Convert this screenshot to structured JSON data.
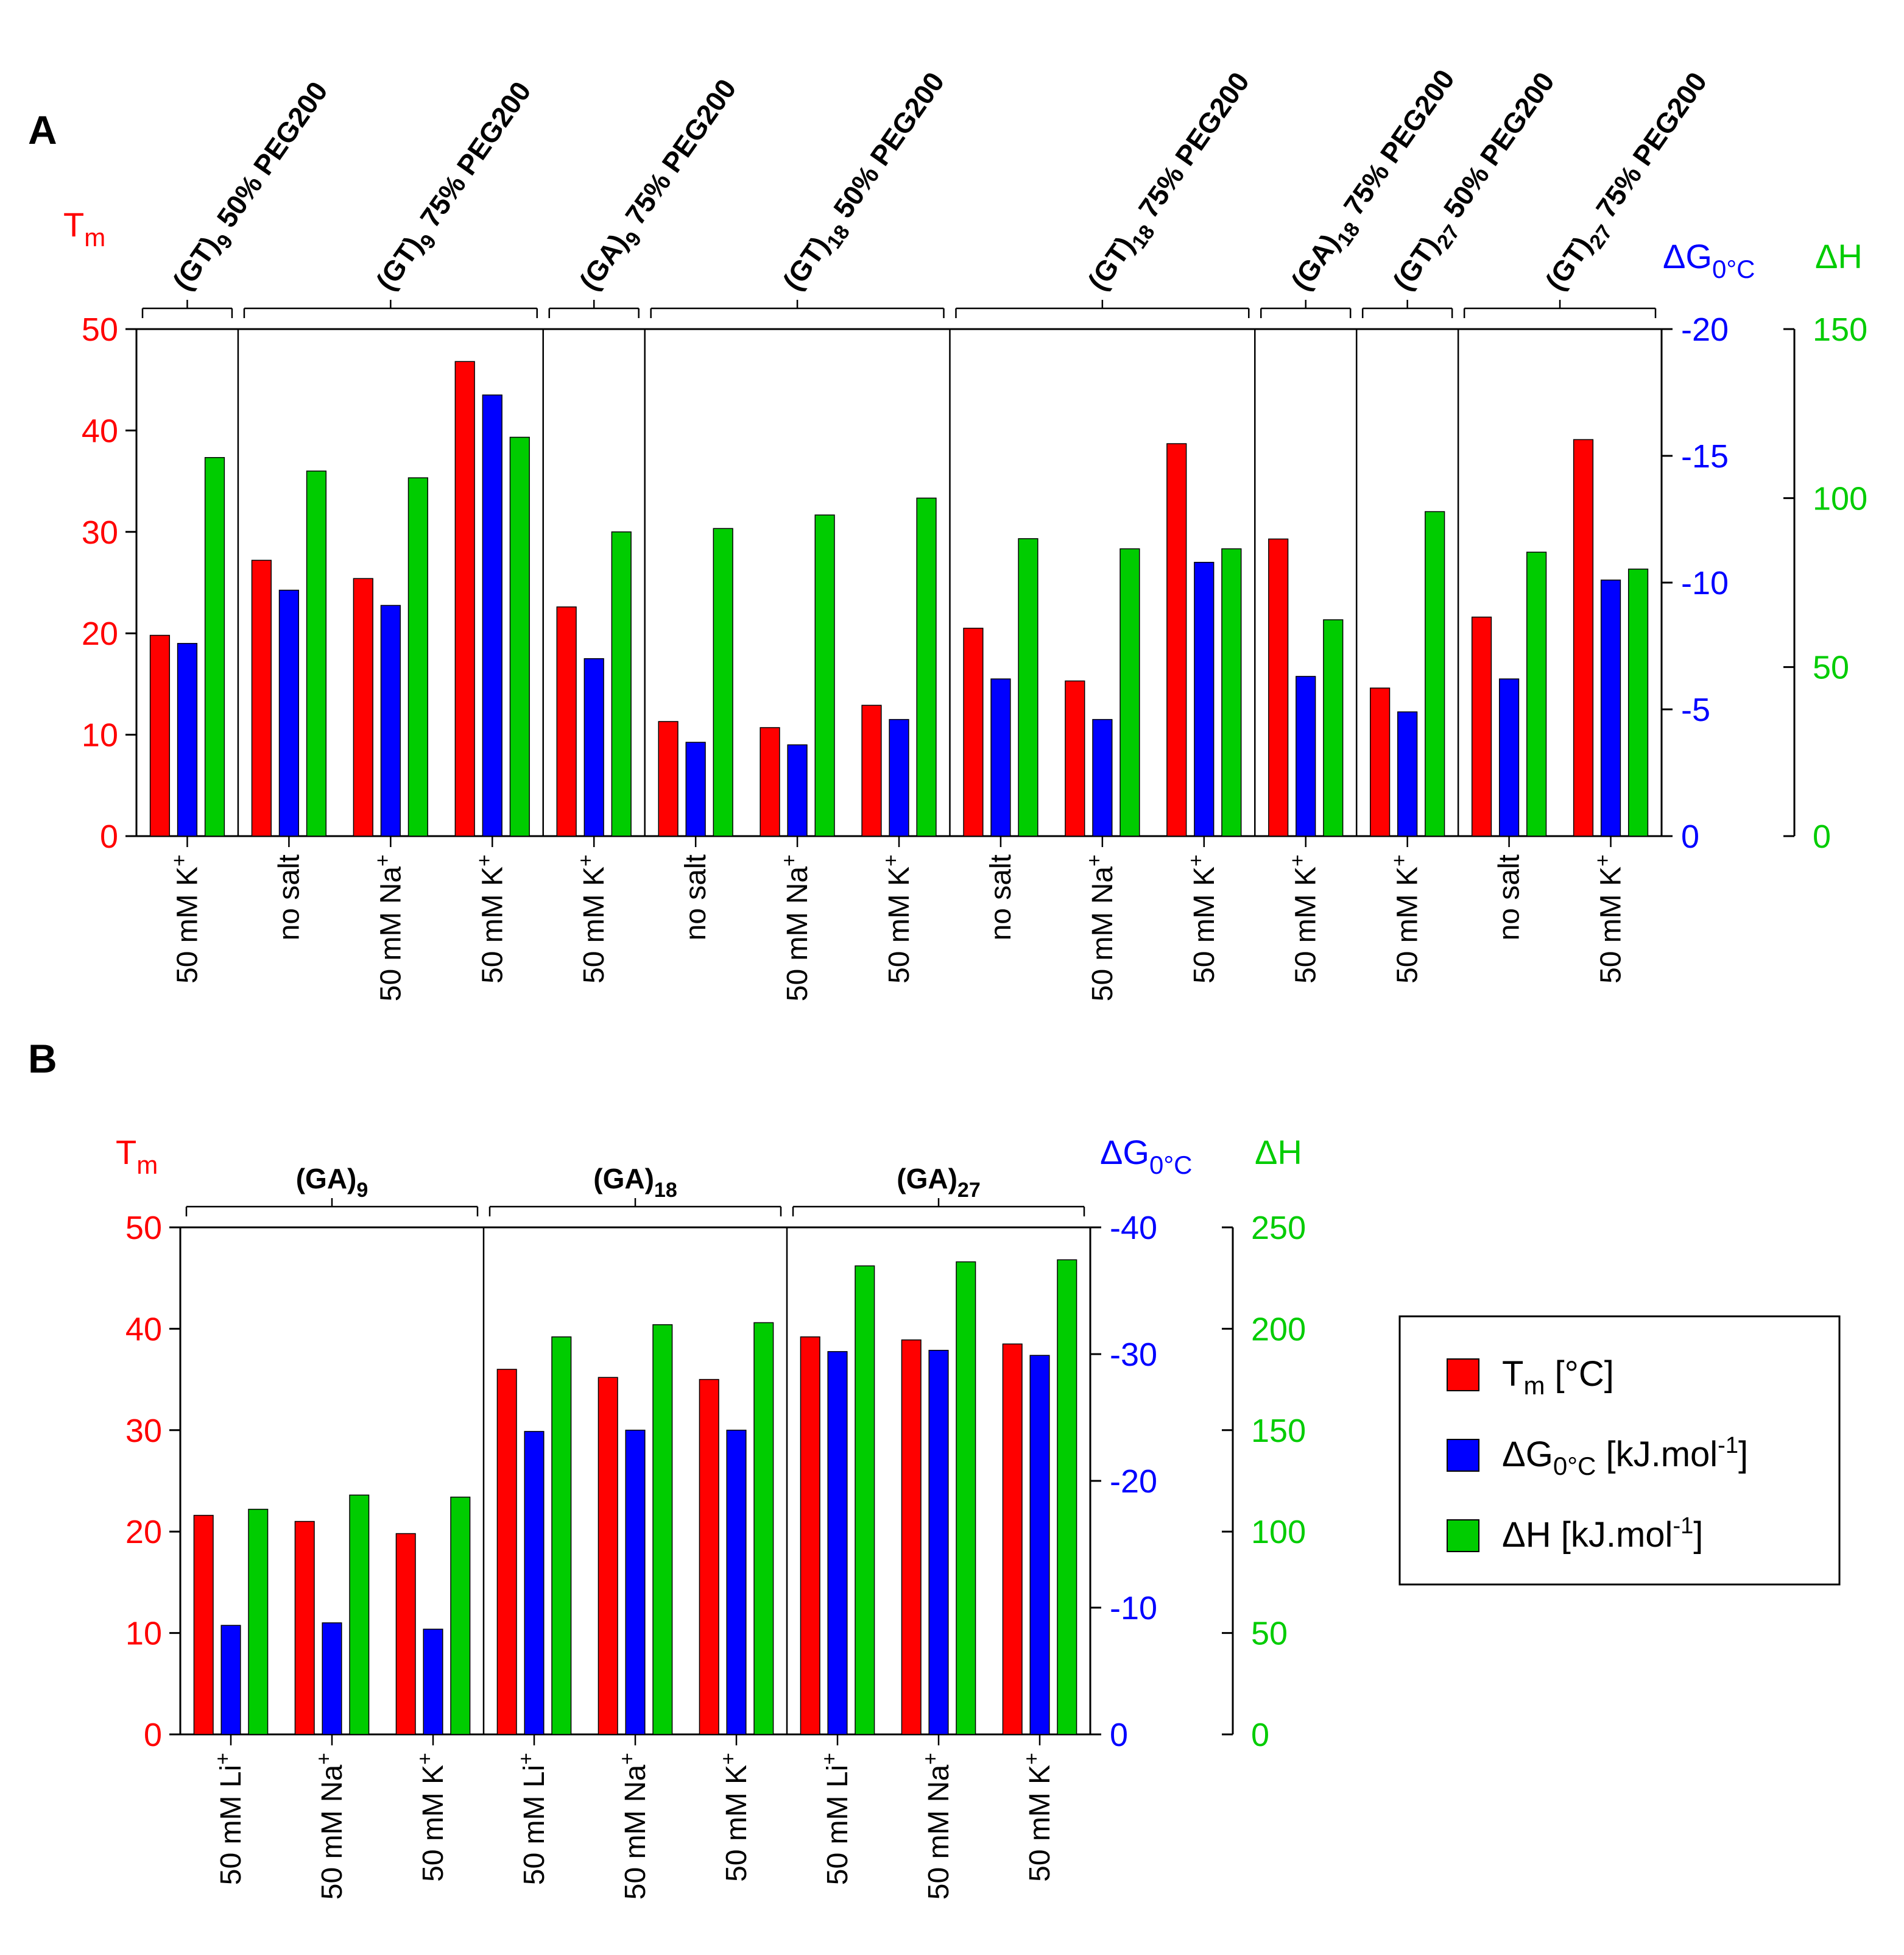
{
  "colors": {
    "tm": "#ff0000",
    "dg": "#0000ff",
    "dh": "#00cc00",
    "axis": "#000000"
  },
  "legend": {
    "items": [
      {
        "key": "tm",
        "main": "T",
        "sub": "m",
        "rest": " [°C]"
      },
      {
        "key": "dg",
        "main": "ΔG",
        "sub": "0°C",
        "rest": " [kJ.mol",
        "sup": "-1",
        "tail": "]"
      },
      {
        "key": "dh",
        "main": "ΔH",
        "sub": "",
        "rest": " [kJ.mol",
        "sup": "-1",
        "tail": "]"
      }
    ]
  },
  "chart_data": [
    {
      "panel": "A",
      "type": "bar",
      "axes": {
        "tm": {
          "main": "T",
          "sub": "m",
          "range": [
            0,
            50
          ],
          "ticks": [
            0,
            10,
            20,
            30,
            40,
            50
          ]
        },
        "dg": {
          "main": "ΔG",
          "sub": "0°C",
          "range": [
            0,
            -20
          ],
          "ticks": [
            0,
            -5,
            -10,
            -15,
            -20
          ]
        },
        "dh": {
          "main": "ΔH",
          "sub": "",
          "range": [
            0,
            150
          ],
          "ticks": [
            0,
            50,
            100,
            150
          ]
        }
      },
      "groups": [
        {
          "parts": [
            [
              "(GT)",
              ""
            ],
            [
              "9",
              "sub"
            ],
            [
              " 50% PEG200",
              ""
            ]
          ],
          "categories": [
            "50 mM K+"
          ]
        },
        {
          "parts": [
            [
              "(GT)",
              ""
            ],
            [
              "9",
              "sub"
            ],
            [
              " 75% PEG200",
              ""
            ]
          ],
          "categories": [
            "no salt",
            "50 mM Na+",
            "50 mM K+"
          ]
        },
        {
          "parts": [
            [
              "(GA)",
              ""
            ],
            [
              "9",
              "sub"
            ],
            [
              " 75% PEG200",
              ""
            ]
          ],
          "categories": [
            "50 mM K+"
          ]
        },
        {
          "parts": [
            [
              "(GT)",
              ""
            ],
            [
              "18",
              "sub"
            ],
            [
              " 50% PEG200",
              ""
            ]
          ],
          "categories": [
            "no salt",
            "50 mM Na+",
            "50 mM K+"
          ]
        },
        {
          "parts": [
            [
              "(GT)",
              ""
            ],
            [
              "18",
              "sub"
            ],
            [
              " 75% PEG200",
              ""
            ]
          ],
          "categories": [
            "no salt",
            "50 mM Na+",
            "50 mM K+"
          ]
        },
        {
          "parts": [
            [
              "(GA)",
              ""
            ],
            [
              "18",
              "sub"
            ],
            [
              " 75% PEG200",
              ""
            ]
          ],
          "categories": [
            "50 mM K+"
          ]
        },
        {
          "parts": [
            [
              "(GT)",
              ""
            ],
            [
              "27",
              "sub"
            ],
            [
              " 50% PEG200",
              ""
            ]
          ],
          "categories": [
            "50 mM K+"
          ]
        },
        {
          "parts": [
            [
              "(GT)",
              ""
            ],
            [
              "27",
              "sub"
            ],
            [
              " 75% PEG200",
              ""
            ]
          ],
          "categories": [
            "no salt",
            "50 mM K+"
          ]
        }
      ],
      "series": [
        {
          "key": "tm",
          "axis": "tm",
          "values": [
            19.8,
            27.2,
            25.4,
            46.8,
            22.6,
            11.3,
            10.7,
            12.9,
            20.5,
            15.3,
            38.7,
            29.3,
            14.6,
            21.6,
            39.1
          ]
        },
        {
          "key": "dg",
          "axis": "dg",
          "values": [
            -7.6,
            -9.7,
            -9.1,
            -17.4,
            -7.0,
            -3.7,
            -3.6,
            -4.6,
            -6.2,
            -4.6,
            -10.8,
            -6.3,
            -4.9,
            -6.2,
            -10.1
          ]
        },
        {
          "key": "dh",
          "axis": "dh",
          "values": [
            112,
            108,
            106,
            118,
            90,
            91,
            95,
            100,
            88,
            85,
            85,
            64,
            96,
            84,
            79
          ]
        }
      ]
    },
    {
      "panel": "B",
      "type": "bar",
      "axes": {
        "tm": {
          "main": "T",
          "sub": "m",
          "range": [
            0,
            50
          ],
          "ticks": [
            0,
            10,
            20,
            30,
            40,
            50
          ]
        },
        "dg": {
          "main": "ΔG",
          "sub": "0°C",
          "range": [
            0,
            -40
          ],
          "ticks": [
            0,
            -10,
            -20,
            -30,
            -40
          ]
        },
        "dh": {
          "main": "ΔH",
          "sub": "",
          "range": [
            0,
            250
          ],
          "ticks": [
            0,
            50,
            100,
            150,
            200,
            250
          ]
        }
      },
      "groups": [
        {
          "parts": [
            [
              "(GA)",
              ""
            ],
            [
              "9",
              "sub"
            ]
          ],
          "categories": [
            "50 mM Li+",
            "50 mM Na+",
            "50 mM K+"
          ]
        },
        {
          "parts": [
            [
              "(GA)",
              ""
            ],
            [
              "18",
              "sub"
            ]
          ],
          "categories": [
            "50 mM Li+",
            "50 mM Na+",
            "50 mM K+"
          ]
        },
        {
          "parts": [
            [
              "(GA)",
              ""
            ],
            [
              "27",
              "sub"
            ]
          ],
          "categories": [
            "50 mM Li+",
            "50 mM Na+",
            "50 mM K+"
          ]
        }
      ],
      "series": [
        {
          "key": "tm",
          "axis": "tm",
          "values": [
            21.6,
            21.0,
            19.8,
            36.0,
            35.2,
            35.0,
            39.2,
            38.9,
            38.5
          ]
        },
        {
          "key": "dg",
          "axis": "dg",
          "values": [
            -8.6,
            -8.8,
            -8.3,
            -23.9,
            -24.0,
            -24.0,
            -30.2,
            -30.3,
            -29.9
          ]
        },
        {
          "key": "dh",
          "axis": "dh",
          "values": [
            111,
            118,
            117,
            196,
            202,
            203,
            231,
            233,
            234
          ]
        }
      ]
    }
  ]
}
